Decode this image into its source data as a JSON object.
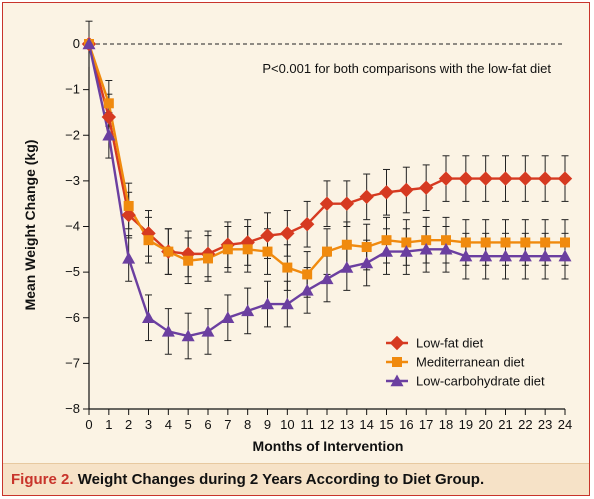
{
  "caption": {
    "figure_label": "Figure 2.",
    "title": "Weight Changes during 2 Years According to Diet Group."
  },
  "colors": {
    "low_fat": "#d63a21",
    "mediterranean": "#f08a0e",
    "low_carb": "#6b3fa0",
    "accent": "#c8342b"
  },
  "chart_data": {
    "type": "line",
    "xlabel": "Months of Intervention",
    "ylabel": "Mean Weight Change (kg)",
    "annotation": "P<0.001 for both comparisons with the low-fat diet",
    "xlim": [
      0,
      24
    ],
    "ylim": [
      -8,
      0
    ],
    "x_ticks": [
      0,
      1,
      2,
      3,
      4,
      5,
      6,
      7,
      8,
      9,
      10,
      11,
      12,
      13,
      14,
      15,
      16,
      17,
      18,
      19,
      20,
      21,
      22,
      23,
      24
    ],
    "y_ticks": [
      0,
      -1,
      -2,
      -3,
      -4,
      -5,
      -6,
      -7,
      -8
    ],
    "y_tick_labels": [
      "0",
      "−1",
      "−2",
      "−3",
      "−4",
      "−5",
      "−6",
      "−7",
      "−8"
    ],
    "reference_line": 0,
    "legend_position": "bottom-right",
    "x": [
      0,
      1,
      2,
      3,
      4,
      5,
      6,
      7,
      8,
      9,
      10,
      11,
      12,
      13,
      14,
      15,
      16,
      17,
      18,
      19,
      20,
      21,
      22,
      23,
      24
    ],
    "series": [
      {
        "name": "Low-fat diet",
        "marker": "diamond",
        "values": [
          0,
          -1.6,
          -3.75,
          -4.15,
          -4.55,
          -4.6,
          -4.6,
          -4.4,
          -4.35,
          -4.2,
          -4.15,
          -3.95,
          -3.5,
          -3.5,
          -3.35,
          -3.25,
          -3.2,
          -3.15,
          -2.95,
          -2.95,
          -2.95,
          -2.95,
          -2.95,
          -2.95,
          -2.95
        ],
        "error": [
          0.45,
          0.5,
          0.5,
          0.5,
          0.5,
          0.5,
          0.5,
          0.5,
          0.5,
          0.5,
          0.5,
          0.5,
          0.5,
          0.5,
          0.5,
          0.5,
          0.5,
          0.5,
          0.5,
          0.5,
          0.5,
          0.5,
          0.5,
          0.5,
          0.5
        ]
      },
      {
        "name": "Mediterranean diet",
        "marker": "square",
        "values": [
          0,
          -1.3,
          -3.55,
          -4.3,
          -4.55,
          -4.75,
          -4.7,
          -4.5,
          -4.5,
          -4.55,
          -4.9,
          -5.05,
          -4.55,
          -4.4,
          -4.45,
          -4.3,
          -4.35,
          -4.3,
          -4.3,
          -4.35,
          -4.35,
          -4.35,
          -4.35,
          -4.35,
          -4.35
        ],
        "error": [
          0.45,
          0.5,
          0.5,
          0.5,
          0.5,
          0.5,
          0.5,
          0.5,
          0.5,
          0.5,
          0.5,
          0.5,
          0.5,
          0.5,
          0.5,
          0.5,
          0.5,
          0.5,
          0.5,
          0.5,
          0.5,
          0.5,
          0.5,
          0.5,
          0.5
        ]
      },
      {
        "name": "Low-carbohydrate diet",
        "marker": "triangle",
        "values": [
          0,
          -2.0,
          -4.7,
          -6.0,
          -6.3,
          -6.4,
          -6.3,
          -6.0,
          -5.85,
          -5.7,
          -5.7,
          -5.4,
          -5.15,
          -4.9,
          -4.8,
          -4.55,
          -4.55,
          -4.5,
          -4.5,
          -4.65,
          -4.65,
          -4.65,
          -4.65,
          -4.65,
          -4.65
        ],
        "error": [
          0.45,
          0.5,
          0.5,
          0.5,
          0.5,
          0.5,
          0.5,
          0.5,
          0.5,
          0.5,
          0.5,
          0.5,
          0.5,
          0.5,
          0.5,
          0.5,
          0.5,
          0.5,
          0.5,
          0.5,
          0.5,
          0.5,
          0.5,
          0.5,
          0.5
        ]
      }
    ]
  }
}
